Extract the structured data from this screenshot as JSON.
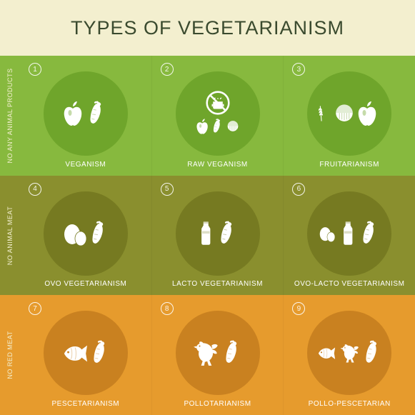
{
  "title": "TYPES OF VEGETARIANISM",
  "page_bg": "#f3efcf",
  "title_color": "#3a4a2e",
  "type": "infographic",
  "grid": {
    "rows": 3,
    "cols": 3
  },
  "rows": [
    {
      "label": "NO ANY ANIMAL PRODUCTS",
      "bg": "#87b93e",
      "circle": "#6fa52b",
      "text": "#ffffff",
      "label_color": "#f3efcf",
      "cells": [
        {
          "n": "1",
          "name": "VEGANISM",
          "icons": [
            "apple",
            "carrot"
          ]
        },
        {
          "n": "2",
          "name": "RAW VEGANISM",
          "icons": [
            "nopot",
            "apple-s",
            "carrot-s",
            "nut-s"
          ]
        },
        {
          "n": "3",
          "name": "FRUITARIANISM",
          "icons": [
            "wheat",
            "nut",
            "apple"
          ]
        }
      ]
    },
    {
      "label": "NO ANIMAL MEAT",
      "bg": "#8a8f2e",
      "circle": "#767a21",
      "text": "#ffffff",
      "label_color": "#f3efcf",
      "cells": [
        {
          "n": "4",
          "name": "OVO VEGETARIANISM",
          "icons": [
            "eggs",
            "carrot"
          ]
        },
        {
          "n": "5",
          "name": "LACTO VEGETARIANISM",
          "icons": [
            "bottle",
            "carrot"
          ]
        },
        {
          "n": "6",
          "name": "OVO-LACTO VEGETARIANISM",
          "icons": [
            "eggs-s",
            "bottle",
            "carrot"
          ]
        }
      ]
    },
    {
      "label": "NO RED MEAT",
      "bg": "#e69b2d",
      "circle": "#c98120",
      "text": "#ffffff",
      "label_color": "#f3efcf",
      "cells": [
        {
          "n": "7",
          "name": "PESCETARIANISM",
          "icons": [
            "fish",
            "carrot"
          ]
        },
        {
          "n": "8",
          "name": "POLLOTARIANISM",
          "icons": [
            "rooster",
            "carrot"
          ]
        },
        {
          "n": "9",
          "name": "POLLO-PESCETARIAN",
          "icons": [
            "fish-s",
            "rooster-s",
            "carrot"
          ]
        }
      ]
    }
  ],
  "icon_color": "#ffffff"
}
